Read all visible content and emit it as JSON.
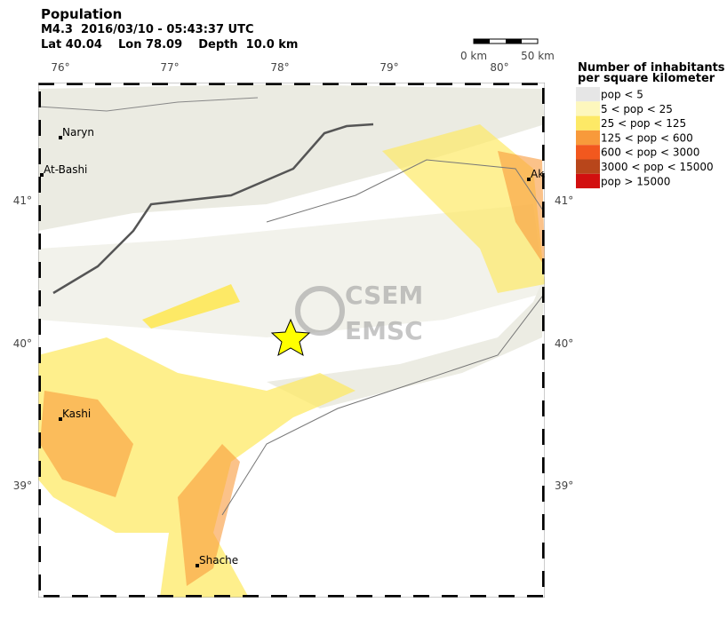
{
  "header": {
    "title": "Population",
    "event": "M4.3  2016/03/10 - 05:43:37 UTC",
    "location": "Lat 40.04    Lon 78.09    Depth  10.0 km"
  },
  "scale_bar": {
    "start": "0 km",
    "end": "50 km"
  },
  "axes": {
    "lon_labels": [
      "76°",
      "77°",
      "78°",
      "79°",
      "80°"
    ],
    "lat_labels": [
      "41°",
      "40°",
      "39°"
    ]
  },
  "cities": [
    {
      "label": "Naryn"
    },
    {
      "label": "At-Bashi"
    },
    {
      "label": "Aks"
    },
    {
      "label": "Kashi"
    },
    {
      "label": "Shache"
    }
  ],
  "watermark": [
    "CSEM",
    "EMSC"
  ],
  "legend": {
    "title_lines": [
      "Number of inhabitants",
      "per square kilometer"
    ],
    "items": [
      {
        "label": "pop < 5",
        "color": "#e6e6e6"
      },
      {
        "label": "5 < pop < 25",
        "color": "#fdf7bd"
      },
      {
        "label": "25 < pop < 125",
        "color": "#fde966"
      },
      {
        "label": "125 < pop < 600",
        "color": "#f89a3b"
      },
      {
        "label": "600 < pop < 3000",
        "color": "#f2581e"
      },
      {
        "label": "3000 < pop < 15000",
        "color": "#b8461b"
      },
      {
        "label": "pop > 15000",
        "color": "#d20f0f"
      }
    ]
  }
}
